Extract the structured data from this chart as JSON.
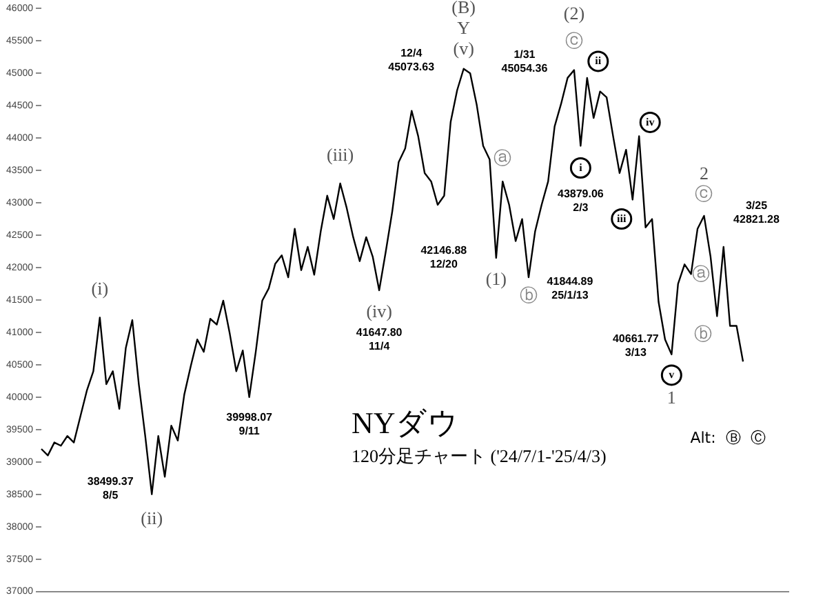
{
  "chart_data": {
    "type": "line",
    "title": "NYダウ",
    "subtitle": "120分足チャート ('24/7/1-'25/4/3)",
    "categories": [
      null,
      null,
      null,
      null,
      null,
      null,
      null,
      null,
      null,
      null,
      null,
      null,
      null,
      null,
      null,
      null,
      null,
      null,
      null,
      null,
      null,
      null,
      null,
      null,
      null,
      null,
      null,
      null,
      null,
      null,
      null,
      null,
      null,
      null,
      null,
      null,
      null,
      null,
      null,
      null,
      null,
      null,
      null,
      null,
      null,
      null,
      null,
      null,
      null,
      null,
      null,
      null,
      null,
      null,
      null,
      null,
      null,
      null,
      null,
      null,
      null,
      null,
      null,
      null,
      null,
      null,
      null,
      null,
      null,
      null,
      null,
      null,
      null,
      null,
      null,
      null,
      null,
      null,
      null,
      null,
      null,
      null,
      null,
      null,
      null,
      null,
      null,
      null,
      null,
      null,
      null,
      null,
      null,
      null,
      null,
      null,
      null,
      null,
      null,
      null,
      null,
      null,
      null,
      null,
      null,
      null,
      null,
      null,
      null,
      null,
      null,
      null,
      null,
      null,
      null,
      null
    ],
    "series": [
      {
        "color": "#000000",
        "values": [
          39200,
          39100,
          39300,
          39250,
          39400,
          39300,
          39700,
          40100,
          40400,
          41230,
          40200,
          40400,
          39820,
          40760,
          41190,
          40200,
          39390,
          38500,
          39400,
          38770,
          39560,
          39330,
          40040,
          40480,
          40890,
          40700,
          41210,
          41120,
          41490,
          40980,
          40400,
          40720,
          40000,
          40700,
          41490,
          41680,
          42060,
          42190,
          41850,
          42600,
          41960,
          42320,
          41890,
          42560,
          43110,
          42750,
          43300,
          42920,
          42470,
          42100,
          42470,
          42170,
          41650,
          42240,
          42860,
          43630,
          43840,
          44420,
          44030,
          43460,
          43330,
          42970,
          43110,
          44250,
          44740,
          45070,
          45000,
          44520,
          43880,
          43670,
          42150,
          43330,
          42970,
          42410,
          42750,
          41850,
          42560,
          42970,
          43330,
          44180,
          44530,
          44930,
          45050,
          43880,
          44930,
          44310,
          44720,
          44630,
          44030,
          43460,
          43820,
          43050,
          44030,
          42620,
          42750,
          41470,
          40890,
          40660,
          41750,
          42050,
          41900,
          42600,
          42800,
          42170,
          41250,
          42320,
          41100,
          41100,
          40550,
          null,
          null,
          null,
          null,
          null,
          null,
          null
        ]
      }
    ],
    "ylim": [
      37000,
      46000
    ],
    "yticks": [
      37000,
      37500,
      38000,
      38500,
      39000,
      39500,
      40000,
      40500,
      41000,
      41500,
      42000,
      42500,
      43000,
      43500,
      44000,
      44500,
      45000,
      45500,
      46000
    ],
    "grid": false,
    "legend": false,
    "tick_labels": "y",
    "line_style": "solid",
    "marker": "none",
    "annotations": [
      "(i)",
      "(ii)",
      "(iii)",
      "(iv)",
      "(v)",
      "Y",
      "(B)",
      "(1)",
      "(2)",
      "ⓐ",
      "ⓑ",
      "ⓒ",
      "ⓐ",
      "ⓑ",
      "ⓒ",
      "1",
      "2",
      "i",
      "ii",
      "iii",
      "iv",
      "v",
      "12/4\n45073.63",
      "1/31\n45054.36",
      "43879.06\n2/3",
      "42146.88\n12/20",
      "41844.89\n25/1/13",
      "40661.77\n3/13",
      "3/25\n42821.28",
      "41647.80\n11/4",
      "39998.07\n9/11",
      "38499.37\n8/5",
      "Alt:  Ⓑ  Ⓒ"
    ]
  }
}
